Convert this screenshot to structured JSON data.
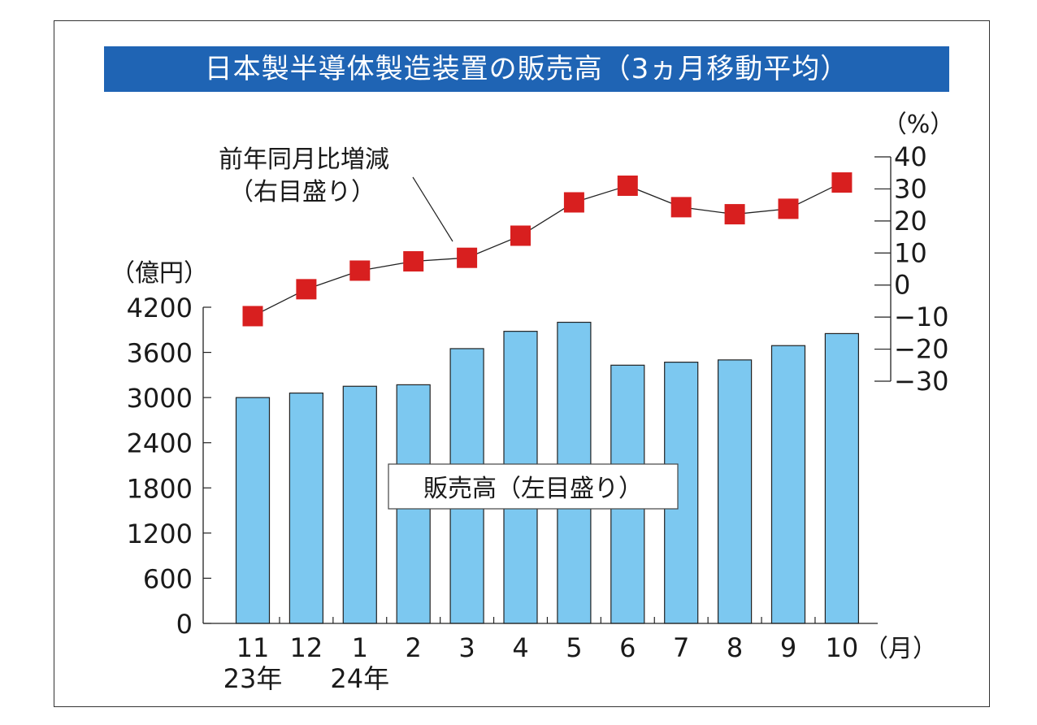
{
  "title": "日本製半導体製造装置の販売高（3ヵ月移動平均）",
  "chart_data": {
    "type": "bar",
    "categories": [
      "11",
      "12",
      "1",
      "2",
      "3",
      "4",
      "5",
      "6",
      "7",
      "8",
      "9",
      "10"
    ],
    "year_labels": [
      "23年",
      "24年"
    ],
    "x_unit": "（月）",
    "series": [
      {
        "name": "販売高（左目盛り）",
        "type": "bar",
        "axis": "left",
        "color": "#7cc8f0",
        "values": [
          3000,
          3060,
          3150,
          3170,
          3650,
          3880,
          4000,
          3430,
          3470,
          3500,
          3690,
          3850
        ]
      },
      {
        "name": "前年同月比増減\n（右目盛り）",
        "type": "line",
        "axis": "right",
        "color": "#d81f1f",
        "values": [
          -9.7,
          -1.3,
          4.5,
          7.4,
          8.5,
          15.4,
          25.8,
          31.0,
          24.3,
          22.1,
          23.8,
          32.0
        ]
      }
    ],
    "y_left": {
      "unit": "（億円）",
      "ylim": [
        0,
        4200
      ],
      "ticks": [
        0,
        600,
        1200,
        1800,
        2400,
        3000,
        3600,
        4200
      ]
    },
    "y_right": {
      "unit": "（%）",
      "ylim": [
        -30,
        40
      ],
      "ticks": [
        40,
        30,
        20,
        10,
        0,
        -10,
        -20,
        -30
      ],
      "tick_labels": [
        "40",
        "30",
        "20",
        "10",
        "0",
        "−10",
        "−20",
        "−30"
      ]
    }
  }
}
